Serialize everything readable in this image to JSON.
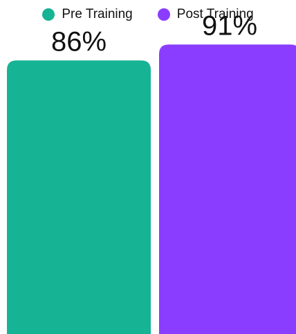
{
  "chart_data": {
    "type": "bar",
    "categories": [
      "Pre Training",
      "Post Training"
    ],
    "values": [
      86,
      91
    ],
    "value_labels": [
      "86%",
      "91%"
    ],
    "colors": [
      "#16b394",
      "#8b3dff"
    ],
    "legend": [
      {
        "label": "Pre Training",
        "color": "#16b394"
      },
      {
        "label": "Post Training",
        "color": "#8b3dff"
      }
    ],
    "ylim": [
      0,
      100
    ],
    "legend_position": "top-center",
    "grid": false
  }
}
